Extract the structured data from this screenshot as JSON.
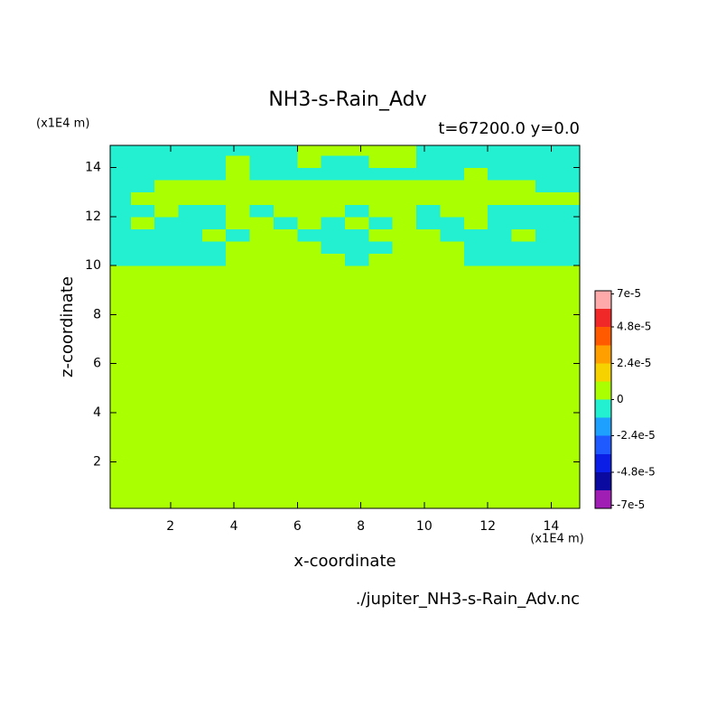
{
  "chart_data": {
    "type": "contour",
    "title": "NH3-s-Rain_Adv",
    "subtitle": "t=67200.0 y=0.0",
    "xlabel": "x-coordinate",
    "ylabel": "z-coordinate",
    "x_unit": "(x1E4 m)",
    "y_unit": "(x1E4 m)",
    "source": "./jupiter_NH3-s-Rain_Adv.nc",
    "xlim": [
      0.1,
      14.9
    ],
    "ylim": [
      0.1,
      14.9
    ],
    "xticks": [
      2,
      4,
      6,
      8,
      10,
      12,
      14
    ],
    "yticks": [
      2,
      4,
      6,
      8,
      10,
      12,
      14
    ],
    "x_edges": [
      0.1,
      0.75,
      1.5,
      2.25,
      3,
      3.75,
      4.5,
      5.25,
      6,
      6.75,
      7.5,
      8.25,
      9,
      9.75,
      10.5,
      11.25,
      12,
      12.75,
      13.5,
      14.25,
      14.9
    ],
    "y_edges": [
      0.1,
      10,
      10.5,
      11,
      11.5,
      12,
      12.5,
      13,
      13.5,
      14,
      14.5,
      14.9
    ],
    "values": [
      [
        0,
        0,
        0,
        0,
        0,
        0,
        0,
        0,
        0,
        0,
        0,
        0,
        0,
        0,
        0,
        0,
        0,
        0,
        0,
        0
      ],
      [
        -5e-06,
        -5e-06,
        -5e-06,
        -5e-06,
        -5e-06,
        0,
        0,
        0,
        0,
        0,
        -5e-06,
        0,
        0,
        0,
        0,
        -5e-06,
        -5e-06,
        -5e-06,
        -5e-06,
        -5e-06
      ],
      [
        -5e-06,
        -5e-06,
        -5e-06,
        -5e-06,
        -5e-06,
        0,
        0,
        0,
        0,
        -5e-06,
        -5e-06,
        -5e-06,
        0,
        0,
        0,
        -5e-06,
        -5e-06,
        -5e-06,
        -5e-06,
        -5e-06
      ],
      [
        -5e-06,
        -5e-06,
        -5e-06,
        -5e-06,
        0,
        -5e-06,
        0,
        0,
        -5e-06,
        -5e-06,
        -5e-06,
        0,
        0,
        0,
        -5e-06,
        -5e-06,
        -5e-06,
        0,
        -5e-06,
        -5e-06
      ],
      [
        -5e-06,
        0,
        -5e-06,
        -5e-06,
        -5e-06,
        0,
        0,
        -5e-06,
        0,
        -5e-06,
        0,
        -5e-06,
        0,
        -5e-06,
        -5e-06,
        0,
        -5e-06,
        -5e-06,
        -5e-06,
        -5e-06
      ],
      [
        -5e-06,
        -5e-06,
        0,
        -5e-06,
        -5e-06,
        0,
        -5e-06,
        0,
        0,
        0,
        -5e-06,
        0,
        0,
        -5e-06,
        0,
        0,
        -5e-06,
        -5e-06,
        -5e-06,
        -5e-06
      ],
      [
        -5e-06,
        0,
        0,
        0,
        0,
        0,
        0,
        0,
        0,
        0,
        0,
        0,
        0,
        0,
        0,
        0,
        0,
        0,
        0,
        0
      ],
      [
        -5e-06,
        -5e-06,
        0,
        0,
        0,
        0,
        0,
        0,
        0,
        0,
        0,
        0,
        0,
        0,
        0,
        0,
        0,
        0,
        -5e-06,
        -5e-06
      ],
      [
        -5e-06,
        -5e-06,
        -5e-06,
        -5e-06,
        -5e-06,
        0,
        -5e-06,
        -5e-06,
        -5e-06,
        -5e-06,
        -5e-06,
        -5e-06,
        -5e-06,
        -5e-06,
        -5e-06,
        0,
        -5e-06,
        -5e-06,
        -5e-06,
        -5e-06
      ],
      [
        -5e-06,
        -5e-06,
        -5e-06,
        -5e-06,
        -5e-06,
        0,
        -5e-06,
        -5e-06,
        0,
        -5e-06,
        -5e-06,
        0,
        0,
        -5e-06,
        -5e-06,
        -5e-06,
        -5e-06,
        -5e-06,
        -5e-06,
        -5e-06
      ],
      [
        -5e-06,
        -5e-06,
        -5e-06,
        -5e-06,
        -5e-06,
        -5e-06,
        -5e-06,
        -5e-06,
        0,
        0,
        0,
        0,
        0,
        -5e-06,
        -5e-06,
        -5e-06,
        -5e-06,
        -5e-06,
        -5e-06,
        -5e-06
      ]
    ],
    "colorbar": {
      "levels": [
        -7.2e-05,
        -6e-05,
        -4.8e-05,
        -3.6e-05,
        -2.4e-05,
        -1.2e-05,
        0,
        1.2e-05,
        2.4e-05,
        3.6e-05,
        4.8e-05,
        6e-05,
        7.2e-05
      ],
      "colors": [
        "#a01eb4",
        "#0a0aa0",
        "#0a1ee6",
        "#1e5aff",
        "#1ea0ff",
        "#22f0d0",
        "#aaff00",
        "#f5d200",
        "#ffa000",
        "#ff5a00",
        "#f02828",
        "#ffaaaa"
      ],
      "ticks": [
        {
          "value": 7e-05,
          "label": "7e-5"
        },
        {
          "value": 4.8e-05,
          "label": "4.8e-5"
        },
        {
          "value": 2.4e-05,
          "label": "2.4e-5"
        },
        0,
        {
          "value": -2.4e-05,
          "label": "-2.4e-5"
        },
        {
          "value": -4.8e-05,
          "label": "-4.8e-5"
        },
        {
          "value": -7e-05,
          "label": "-7e-5"
        }
      ]
    }
  }
}
